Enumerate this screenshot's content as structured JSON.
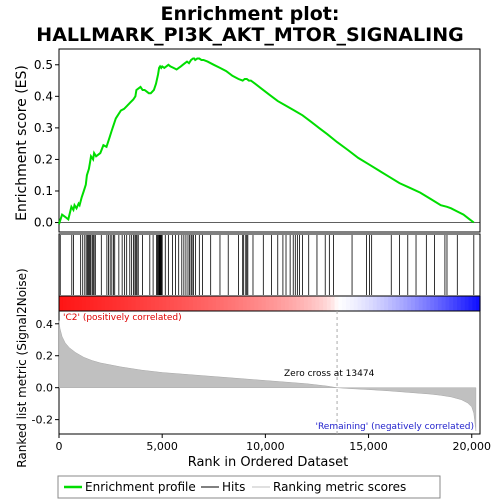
{
  "chart_data": {
    "type": "line",
    "title": "Enrichment plot:\nHALLMARK_PI3K_AKT_MTOR_SIGNALING",
    "title_lines": [
      "Enrichment plot:",
      "HALLMARK_PI3K_AKT_MTOR_SIGNALING"
    ],
    "top_panel": {
      "ylabel": "Enrichment score (ES)",
      "ylim": [
        -0.03,
        0.55
      ],
      "yticks": [
        0.0,
        0.1,
        0.2,
        0.3,
        0.4,
        0.5
      ],
      "ytick_labels": [
        "0.0",
        "0.1",
        "0.2",
        "0.3",
        "0.4",
        "0.5"
      ],
      "series": [
        {
          "name": "Enrichment profile",
          "color": "#00dd00",
          "x": [
            0,
            150,
            300,
            450,
            600,
            700,
            750,
            850,
            950,
            1000,
            1100,
            1200,
            1300,
            1350,
            1450,
            1500,
            1550,
            1650,
            1700,
            1800,
            1900,
            2000,
            2150,
            2300,
            2450,
            2550,
            2650,
            2750,
            2850,
            3000,
            3150,
            3300,
            3450,
            3600,
            3700,
            3750,
            3850,
            3950,
            4050,
            4150,
            4250,
            4350,
            4450,
            4600,
            4700,
            4800,
            4850,
            4900,
            4950,
            5000,
            5100,
            5200,
            5300,
            5400,
            5550,
            5700,
            5800,
            5900,
            6000,
            6100,
            6200,
            6300,
            6400,
            6500,
            6550,
            6600,
            6700,
            6800,
            6900,
            7000,
            7200,
            7500,
            7800,
            8100,
            8400,
            8700,
            8900,
            9000,
            9100,
            9200,
            9300,
            9500,
            9800,
            10200,
            10600,
            11000,
            11400,
            11800,
            12200,
            12600,
            13000,
            13474,
            14000,
            14500,
            15000,
            15500,
            16000,
            16500,
            17000,
            17500,
            18000,
            18500,
            18800,
            19000,
            19300,
            19600,
            19900,
            20100
          ],
          "y": [
            -0.005,
            0.025,
            0.018,
            0.01,
            0.05,
            0.04,
            0.055,
            0.045,
            0.06,
            0.055,
            0.08,
            0.1,
            0.12,
            0.15,
            0.17,
            0.19,
            0.21,
            0.2,
            0.22,
            0.21,
            0.215,
            0.22,
            0.245,
            0.24,
            0.27,
            0.29,
            0.31,
            0.33,
            0.34,
            0.355,
            0.36,
            0.37,
            0.38,
            0.39,
            0.4,
            0.42,
            0.425,
            0.43,
            0.42,
            0.42,
            0.415,
            0.41,
            0.41,
            0.42,
            0.44,
            0.47,
            0.49,
            0.495,
            0.49,
            0.495,
            0.49,
            0.495,
            0.5,
            0.495,
            0.49,
            0.485,
            0.49,
            0.495,
            0.5,
            0.505,
            0.51,
            0.505,
            0.515,
            0.52,
            0.52,
            0.515,
            0.52,
            0.52,
            0.515,
            0.515,
            0.51,
            0.5,
            0.49,
            0.48,
            0.465,
            0.455,
            0.45,
            0.455,
            0.455,
            0.45,
            0.45,
            0.44,
            0.425,
            0.405,
            0.385,
            0.37,
            0.355,
            0.34,
            0.32,
            0.3,
            0.28,
            0.255,
            0.23,
            0.205,
            0.185,
            0.165,
            0.145,
            0.125,
            0.11,
            0.095,
            0.075,
            0.055,
            0.05,
            0.045,
            0.035,
            0.025,
            0.01,
            0.0
          ]
        }
      ]
    },
    "hits": [
      60,
      620,
      700,
      1050,
      1150,
      1250,
      1320,
      1380,
      1430,
      1480,
      1530,
      1600,
      1650,
      1700,
      1760,
      2050,
      2320,
      2400,
      2480,
      2560,
      2640,
      2700,
      2900,
      3060,
      3180,
      3280,
      3430,
      3520,
      3610,
      3680,
      3730,
      3780,
      3840,
      4050,
      4400,
      4560,
      4720,
      4770,
      4810,
      4850,
      4880,
      4910,
      4940,
      4970,
      5000,
      5150,
      5300,
      5500,
      5650,
      5800,
      5950,
      6050,
      6150,
      6250,
      6330,
      6400,
      6450,
      6520,
      6620,
      6800,
      6950,
      7350,
      7800,
      8200,
      8700,
      8900,
      8950,
      9050,
      9100,
      9150,
      9400,
      9900,
      10300,
      10600,
      10850,
      11000,
      11200,
      11350,
      11450,
      11550,
      11650,
      11800,
      12100,
      12500,
      12900,
      13100,
      13300,
      14200,
      14900,
      15050,
      15150,
      16100,
      16500,
      16900,
      17300,
      17800,
      18200,
      18700,
      18800,
      19300,
      20100
    ],
    "bottom_panel": {
      "ylabel": "Ranked list metric (Signal2Noise)",
      "xlabel": "Rank in Ordered Dataset",
      "ylim": [
        -0.29,
        0.48
      ],
      "yticks": [
        -0.2,
        0.0,
        0.2,
        0.4
      ],
      "ytick_labels": [
        "-0.2",
        "0.0",
        "0.2",
        "0.4"
      ],
      "xlim": [
        0,
        20400
      ],
      "xticks": [
        0,
        5000,
        10000,
        15000,
        20000
      ],
      "xtick_labels": [
        "0",
        "5,000",
        "10,000",
        "15,000",
        "20,000"
      ],
      "metric_x": [
        0,
        50,
        150,
        300,
        500,
        800,
        1200,
        1600,
        2000,
        3000,
        4000,
        5000,
        6000,
        7000,
        8000,
        9000,
        10000,
        11000,
        12000,
        13000,
        13474,
        14000,
        15000,
        16000,
        17000,
        18000,
        18500,
        19000,
        19500,
        19800,
        20000,
        20100,
        20200
      ],
      "metric_y": [
        0.42,
        0.37,
        0.32,
        0.28,
        0.25,
        0.22,
        0.19,
        0.17,
        0.155,
        0.13,
        0.11,
        0.095,
        0.085,
        0.075,
        0.065,
        0.055,
        0.045,
        0.035,
        0.025,
        0.01,
        0.0,
        -0.005,
        -0.012,
        -0.02,
        -0.03,
        -0.04,
        -0.048,
        -0.058,
        -0.075,
        -0.095,
        -0.12,
        -0.16,
        -0.27
      ],
      "annotations": {
        "positive": "'C2' (positively correlated)",
        "negative": "'Remaining' (negatively correlated)",
        "zero_cross": "Zero cross at 13474"
      },
      "zero_cross_x": 13474
    },
    "legend": [
      {
        "label": "Enrichment profile",
        "color": "#00dd00"
      },
      {
        "label": "Hits",
        "color": "#000000"
      },
      {
        "label": "Ranking metric scores",
        "color": "#c0c0c0"
      }
    ],
    "colors": {
      "es_line": "#00dd00",
      "metric_fill": "#c0c0c0",
      "positive_text": "#dd0000",
      "negative_text": "#2222cc",
      "zero_line": "#aaaaaa"
    }
  }
}
